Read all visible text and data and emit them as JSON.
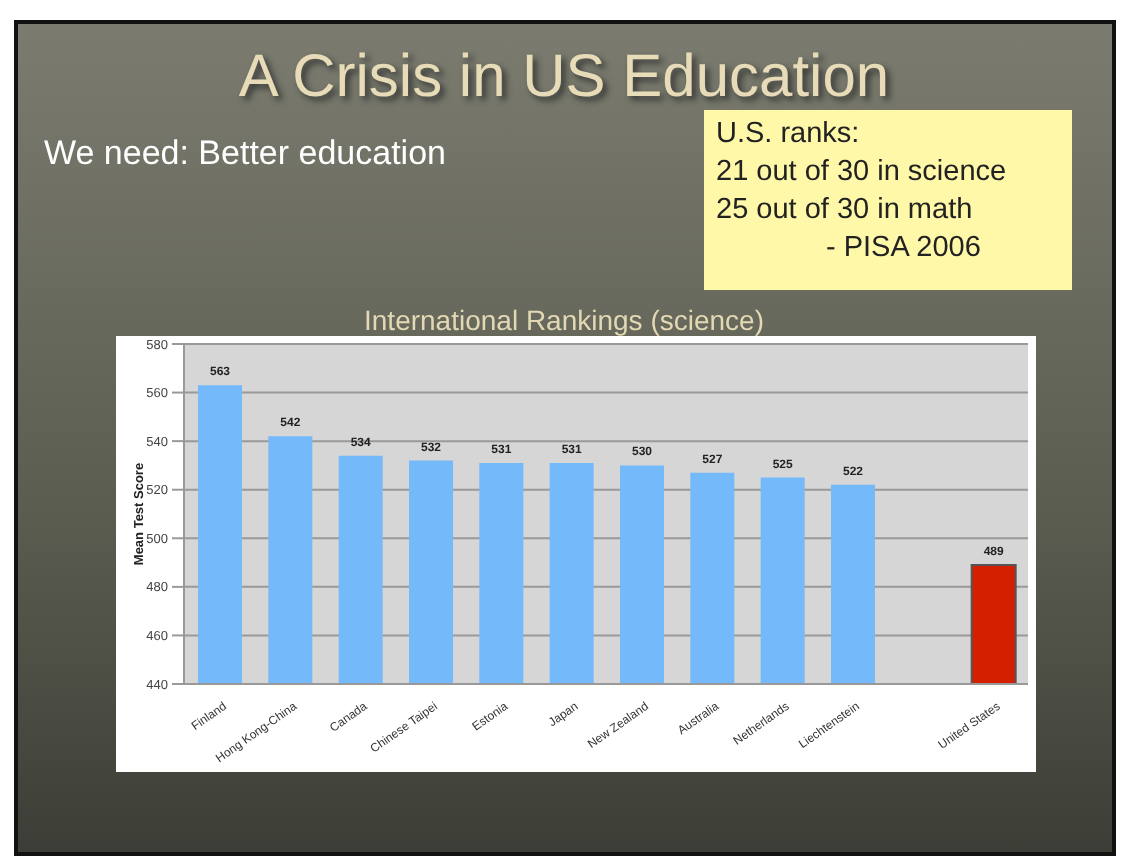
{
  "chart_data": {
    "type": "bar",
    "title": "A Crisis in US Education",
    "subtitle": "International Rankings (science)",
    "ylabel": "Mean Test Score",
    "annotations": [
      "We need: Better education",
      "U.S. ranks:",
      "21 out of 30 in science",
      "25 out of 30 in math",
      "- PISA 2006"
    ],
    "categories": [
      "Finland",
      "Hong Kong-China",
      "Canada",
      "Chinese Taipei",
      "Estonia",
      "Japan",
      "New Zealand",
      "Australia",
      "Netherlands",
      "Liechtenstein",
      null,
      "United States"
    ],
    "values": [
      563,
      542,
      534,
      532,
      531,
      531,
      530,
      527,
      525,
      522,
      null,
      489
    ],
    "colors": [
      "#74b9f9",
      "#74b9f9",
      "#74b9f9",
      "#74b9f9",
      "#74b9f9",
      "#74b9f9",
      "#74b9f9",
      "#74b9f9",
      "#74b9f9",
      "#74b9f9",
      "#74b9f9",
      "#d42000"
    ],
    "ylim": [
      440,
      580
    ],
    "yticks": [
      440,
      460,
      480,
      500,
      520,
      540,
      560,
      580
    ],
    "grid": "y",
    "data_labels": true
  }
}
